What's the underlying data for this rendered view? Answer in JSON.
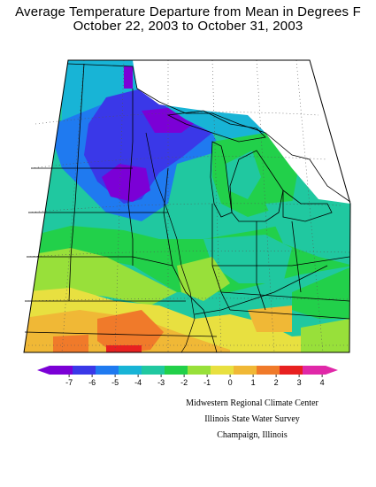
{
  "title_line1": "Average Temperature Departure from Mean in Degrees F",
  "title_line2": "October 22, 2003 to October 31, 2003",
  "legend": {
    "ticks": [
      "-7",
      "-6",
      "-5",
      "-4",
      "-3",
      "-2",
      "-1",
      "0",
      "1",
      "2",
      "3",
      "4"
    ],
    "colors": [
      "#7b00d6",
      "#3a38e8",
      "#1f7af0",
      "#18b4d6",
      "#20c8a0",
      "#22d04a",
      "#98e03a",
      "#e8e040",
      "#f0b836",
      "#f07a2a",
      "#e82020",
      "#e028a8"
    ]
  },
  "credits": {
    "line1": "Midwestern Regional Climate Center",
    "line2": "Illinois State Water Survey",
    "line3": "Champaign, Illinois"
  }
}
